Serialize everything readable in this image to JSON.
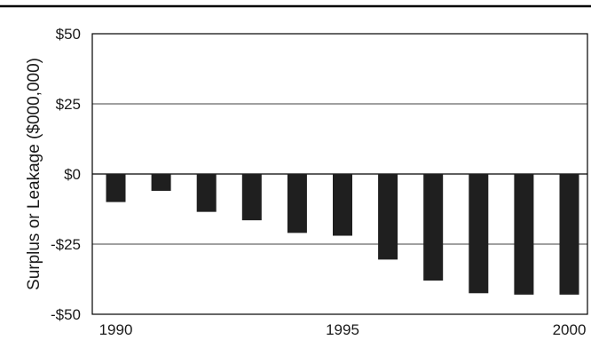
{
  "chart_data": {
    "type": "bar",
    "title": "",
    "xlabel": "",
    "ylabel": "Surplus or Leakage ($000,000)",
    "categories": [
      1990,
      1991,
      1992,
      1993,
      1994,
      1995,
      1996,
      1997,
      1998,
      1999,
      2000
    ],
    "values": [
      -10,
      -6,
      -13.5,
      -16.5,
      -21,
      -22,
      -30.5,
      -38,
      -42.5,
      -43,
      -43
    ],
    "ylim": [
      -50,
      50
    ],
    "y_ticks": [
      50,
      25,
      0,
      -25,
      -50
    ],
    "y_tick_labels": [
      "$50",
      "$25",
      "$0",
      "-$25",
      "-$50"
    ],
    "x_tick_labels": [
      "1990",
      "1995",
      "2000"
    ],
    "x_tick_positions": [
      1990,
      1995,
      2000
    ],
    "grid": true,
    "bar_color": "#1f1f1f"
  }
}
